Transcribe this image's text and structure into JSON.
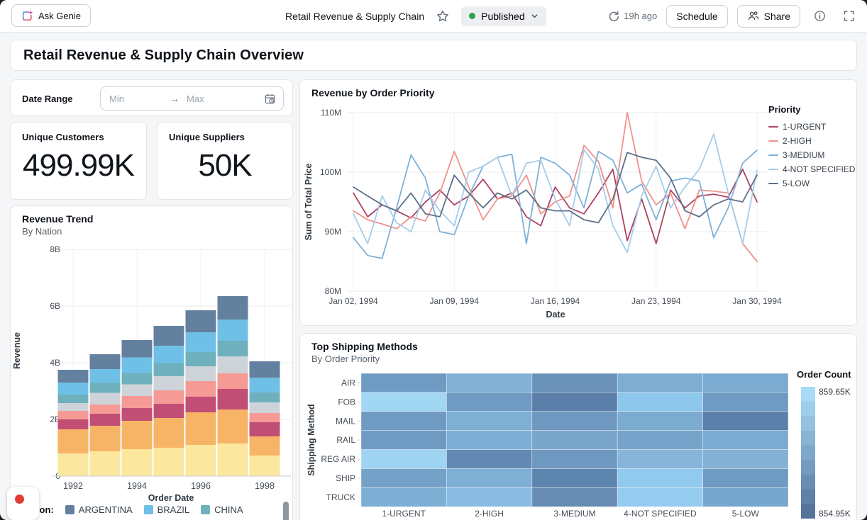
{
  "topbar": {
    "ask_genie": "Ask Genie",
    "title": "Retail Revenue & Supply Chain",
    "status_label": "Published",
    "refreshed": "19h ago",
    "schedule": "Schedule",
    "share": "Share"
  },
  "icons": {
    "ask_genie": "genie-sparkle",
    "favorite": "star-outline",
    "status": "green-dot",
    "status_expand": "chevron-down",
    "refresh": "circular-arrow",
    "share": "people",
    "info": "info-circle",
    "fullscreen": "expand-corners",
    "date_picker": "calendar-clock",
    "range_separator": "arrow-right",
    "recording": "red-dot"
  },
  "page_title": "Retail Revenue & Supply Chain Overview",
  "filter": {
    "label": "Date Range",
    "min_placeholder": "Min",
    "max_placeholder": "Max",
    "separator": "→"
  },
  "counters": [
    {
      "label": "Unique Customers",
      "value": "499.99K"
    },
    {
      "label": "Unique Suppliers",
      "value": "50K"
    }
  ],
  "colors": {
    "published_dot": "#2BA24C",
    "page_bg": "#F5F6F8"
  },
  "chart_data": [
    {
      "id": "revenue-trend",
      "type": "bar",
      "title": "Revenue Trend",
      "subtitle": "By Nation",
      "xlabel": "Order Date",
      "ylabel": "Revenue",
      "categories": [
        "1992",
        "1993",
        "1994",
        "1995",
        "1996",
        "1997",
        "1998"
      ],
      "xticks": [
        "1992",
        "1994",
        "1996",
        "1998"
      ],
      "yticks": [
        {
          "v": 0,
          "label": "0"
        },
        {
          "v": 2,
          "label": "2B"
        },
        {
          "v": 4,
          "label": "4B"
        },
        {
          "v": 6,
          "label": "6B"
        },
        {
          "v": 8,
          "label": "8B"
        }
      ],
      "ylim": [
        0,
        8
      ],
      "unit": "B",
      "totals": [
        3.75,
        4.3,
        4.8,
        5.3,
        5.85,
        6.35,
        4.05
      ],
      "series": [
        {
          "color": "#FBE79D",
          "values": [
            0.8,
            0.88,
            0.95,
            1.0,
            1.1,
            1.15,
            0.72
          ]
        },
        {
          "color": "#F8B466",
          "values": [
            0.85,
            0.9,
            1.0,
            1.05,
            1.15,
            1.2,
            0.68
          ]
        },
        {
          "color": "#C14F75",
          "values": [
            0.35,
            0.42,
            0.45,
            0.5,
            0.55,
            0.72,
            0.5
          ]
        },
        {
          "color": "#F59A95",
          "values": [
            0.3,
            0.32,
            0.42,
            0.48,
            0.55,
            0.55,
            0.32
          ]
        },
        {
          "color": "#CDD3D9",
          "values": [
            0.28,
            0.42,
            0.42,
            0.5,
            0.52,
            0.6,
            0.38
          ]
        },
        {
          "name": "CHINA",
          "color": "#6FB0BD",
          "values": [
            0.3,
            0.35,
            0.4,
            0.45,
            0.5,
            0.55,
            0.35
          ]
        },
        {
          "name": "BRAZIL",
          "color": "#6FC0E6",
          "values": [
            0.42,
            0.48,
            0.55,
            0.62,
            0.7,
            0.75,
            0.52
          ]
        },
        {
          "name": "ARGENTINA",
          "color": "#64809F",
          "values": [
            0.45,
            0.53,
            0.61,
            0.7,
            0.78,
            0.83,
            0.58
          ]
        }
      ],
      "legend": {
        "label": "Nation:",
        "items": [
          {
            "name": "ARGENTINA",
            "color": "#64809F"
          },
          {
            "name": "BRAZIL",
            "color": "#6FC0E6"
          },
          {
            "name": "CHINA",
            "color": "#6FB0BD"
          }
        ]
      }
    },
    {
      "id": "revenue-by-order-priority",
      "type": "line",
      "title": "Revenue by Order Priority",
      "xlabel": "Date",
      "ylabel": "Sum of Total Price",
      "unit": "M",
      "ylim": [
        80,
        110
      ],
      "yticks": [
        {
          "v": 110,
          "label": "110M"
        },
        {
          "v": 100,
          "label": "100M"
        },
        {
          "v": 90,
          "label": "90M"
        },
        {
          "v": 80,
          "label": "80M"
        }
      ],
      "xticks": [
        {
          "day": 2,
          "label": "Jan 02, 1994"
        },
        {
          "day": 9,
          "label": "Jan 09, 1994"
        },
        {
          "day": 16,
          "label": "Jan 16, 1994"
        },
        {
          "day": 23,
          "label": "Jan 23, 1994"
        },
        {
          "day": 30,
          "label": "Jan 30, 1994"
        }
      ],
      "x_days": [
        2,
        3,
        4,
        5,
        6,
        7,
        8,
        9,
        10,
        11,
        12,
        13,
        14,
        15,
        16,
        17,
        18,
        19,
        20,
        21,
        22,
        23,
        24,
        25,
        26,
        27,
        28,
        29,
        30
      ],
      "legend_title": "Priority",
      "series": [
        {
          "name": "1-URGENT",
          "color": "#AC4360",
          "values": [
            96.5,
            92.5,
            94.5,
            93.5,
            92.3,
            95.0,
            97.0,
            94.5,
            96.0,
            98.8,
            95.5,
            96.5,
            92.5,
            91.0,
            97.5,
            94.0,
            93.0,
            96.5,
            100.5,
            88.5,
            95.5,
            88.0,
            97.0,
            94.0,
            96.0,
            96.3,
            95.8,
            100.5,
            95.0
          ]
        },
        {
          "name": "2-HIGH",
          "color": "#F0918C",
          "values": [
            93.5,
            92.0,
            91.3,
            90.5,
            92.5,
            91.8,
            96.5,
            103.5,
            97.5,
            92.0,
            95.5,
            96.0,
            99.5,
            93.0,
            95.0,
            96.0,
            104.5,
            101.8,
            94.0,
            110.0,
            98.5,
            94.5,
            96.5,
            90.5,
            97.0,
            96.8,
            96.5,
            88.0,
            85.0
          ]
        },
        {
          "name": "3-MEDIUM",
          "color": "#7EB1D8",
          "values": [
            89.0,
            86.0,
            85.5,
            94.0,
            102.9,
            99.0,
            90.0,
            89.5,
            96.0,
            101.0,
            102.5,
            103.0,
            88.0,
            102.5,
            101.5,
            99.5,
            94.0,
            103.5,
            102.0,
            96.5,
            98.0,
            92.0,
            98.5,
            99.0,
            98.5,
            89.0,
            94.0,
            101.5,
            103.7
          ]
        },
        {
          "name": "4-NOT SPECIFIED",
          "color": "#A5CDE9",
          "values": [
            93.0,
            88.0,
            96.0,
            91.5,
            90.0,
            97.0,
            93.5,
            91.0,
            100.0,
            101.0,
            102.5,
            96.0,
            101.5,
            102.0,
            95.5,
            91.0,
            103.8,
            100.5,
            91.0,
            86.5,
            96.0,
            101.0,
            94.0,
            97.5,
            100.5,
            106.4,
            96.5,
            88.0,
            100.3
          ]
        },
        {
          "name": "5-LOW",
          "color": "#5E7089",
          "values": [
            97.5,
            96.0,
            94.5,
            93.5,
            96.5,
            93.0,
            92.5,
            99.5,
            96.5,
            94.0,
            96.5,
            95.5,
            97.0,
            94.0,
            93.5,
            93.5,
            92.0,
            91.5,
            95.5,
            103.3,
            102.5,
            102.0,
            99.0,
            93.5,
            92.5,
            94.5,
            95.5,
            95.0,
            99.5
          ]
        }
      ]
    },
    {
      "id": "top-shipping-methods",
      "type": "heatmap",
      "title": "Top Shipping Methods",
      "subtitle": "By Order Priority",
      "ylabel": "Shipping Method",
      "rows": [
        "AIR",
        "FOB",
        "MAIL",
        "RAIL",
        "REG AIR",
        "SHIP",
        "TRUCK"
      ],
      "columns": [
        "1-URGENT",
        "2-HIGH",
        "3-MEDIUM",
        "4-NOT SPECIFIED",
        "5-LOW"
      ],
      "cell_colors": [
        [
          "#6F9BC3",
          "#82B1D4",
          "#6B92B8",
          "#7FADD1",
          "#7BABD0"
        ],
        [
          "#A2D7F4",
          "#6F9BC3",
          "#5B7FA8",
          "#8EC7EC",
          "#6F9BC3"
        ],
        [
          "#6F9BC3",
          "#7FB0D4",
          "#6F98C0",
          "#7CABD0",
          "#5B80A9"
        ],
        [
          "#6F9BC3",
          "#7CAFD3",
          "#7AA6CB",
          "#75A3C9",
          "#7BABD0"
        ],
        [
          "#9FD4F2",
          "#6389B2",
          "#6F98C0",
          "#86B5D9",
          "#82B1D4"
        ],
        [
          "#74A1C7",
          "#7FB0D4",
          "#5E85AE",
          "#92C9EE",
          "#6F9BC3"
        ],
        [
          "#7CAFD3",
          "#89BCE0",
          "#678CB4",
          "#94CBEE",
          "#77A7CC"
        ]
      ],
      "legend": {
        "title": "Order Count",
        "max": "859.65K",
        "min": "854.95K",
        "color_high": "#A8DBF5",
        "color_low": "#54749C"
      }
    }
  ]
}
